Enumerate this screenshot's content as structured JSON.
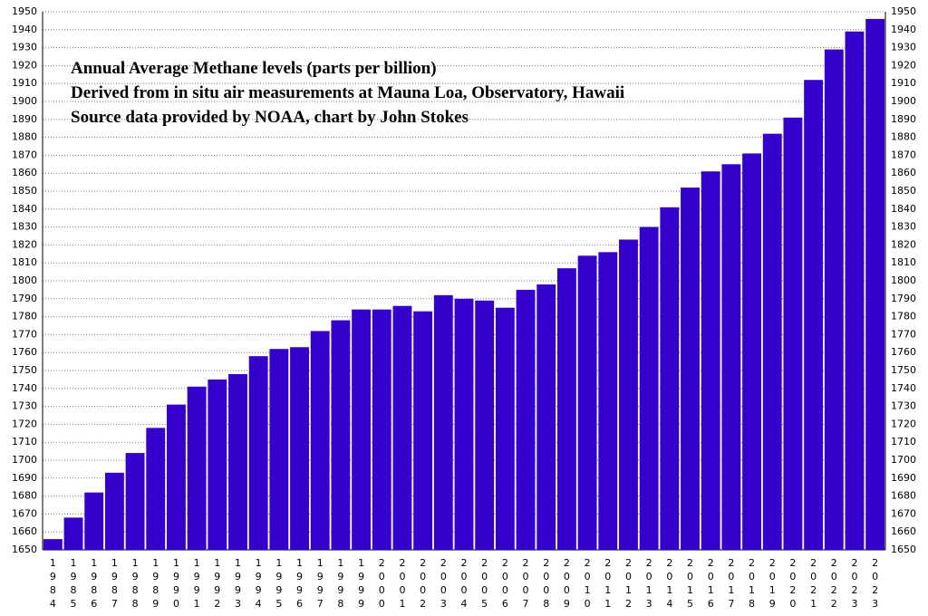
{
  "chart_data": {
    "type": "bar",
    "title": [
      "Annual Average Methane levels (parts per billion)",
      "Derived from in situ air measurements at Mauna Loa, Observatory, Hawaii",
      "Source data provided by NOAA, chart by John Stokes"
    ],
    "categories": [
      "1984",
      "1985",
      "1986",
      "1987",
      "1988",
      "1989",
      "1990",
      "1991",
      "1992",
      "1993",
      "1994",
      "1995",
      "1996",
      "1997",
      "1998",
      "1999",
      "2000",
      "2001",
      "2002",
      "2003",
      "2004",
      "2005",
      "2006",
      "2007",
      "2008",
      "2009",
      "2010",
      "2011",
      "2012",
      "2013",
      "2014",
      "2015",
      "2016",
      "2017",
      "2018",
      "2019",
      "2020",
      "2021",
      "2022",
      "2023",
      "2023"
    ],
    "values": [
      1656,
      1668,
      1682,
      1693,
      1704,
      1718,
      1731,
      1741,
      1745,
      1748,
      1758,
      1762,
      1763,
      1772,
      1778,
      1784,
      1784,
      1786,
      1783,
      1792,
      1790,
      1789,
      1785,
      1795,
      1798,
      1807,
      1814,
      1816,
      1823,
      1830,
      1841,
      1852,
      1861,
      1865,
      1871,
      1882,
      1891,
      1912,
      1929,
      1939,
      1946
    ],
    "color": "#3300cc",
    "ylim": [
      1650,
      1950
    ],
    "yticks": [
      1650,
      1660,
      1670,
      1680,
      1690,
      1700,
      1710,
      1720,
      1730,
      1740,
      1750,
      1760,
      1770,
      1780,
      1790,
      1800,
      1810,
      1820,
      1830,
      1840,
      1850,
      1860,
      1870,
      1880,
      1890,
      1900,
      1910,
      1920,
      1930,
      1940,
      1950
    ],
    "grid": true
  }
}
